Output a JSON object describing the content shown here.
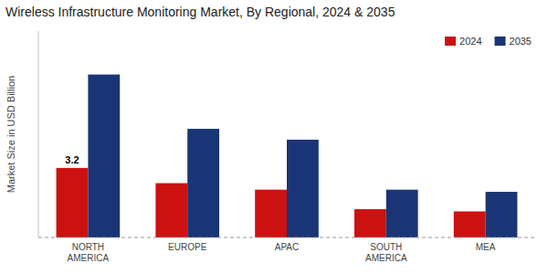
{
  "chart_data": {
    "type": "bar",
    "title": "Wireless Infrastructure Monitoring Market, By Regional, 2024 & 2035",
    "y_label": "Market Size in USD Billion",
    "categories": [
      "NORTH\nAMERICA",
      "EUROPE",
      "APAC",
      "SOUTH\nAMERICA",
      "MEA"
    ],
    "series": [
      {
        "name": "2024",
        "color": "#cc1111",
        "values": [
          3.2,
          2.5,
          2.2,
          1.3,
          1.2
        ]
      },
      {
        "name": "2035",
        "color": "#1a3575",
        "values": [
          7.5,
          5.0,
          4.5,
          2.2,
          2.1
        ]
      }
    ],
    "annotation": "3.2",
    "ylim": [
      0,
      9.5
    ],
    "tick_labels": "x",
    "grid": false,
    "legend": "upper right"
  }
}
